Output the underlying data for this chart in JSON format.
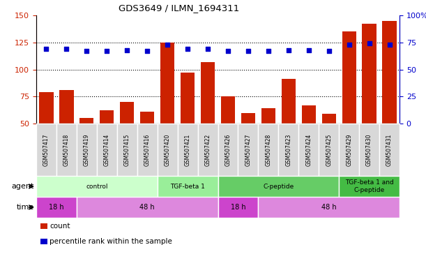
{
  "title": "GDS3649 / ILMN_1694311",
  "samples": [
    "GSM507417",
    "GSM507418",
    "GSM507419",
    "GSM507414",
    "GSM507415",
    "GSM507416",
    "GSM507420",
    "GSM507421",
    "GSM507422",
    "GSM507426",
    "GSM507427",
    "GSM507428",
    "GSM507423",
    "GSM507424",
    "GSM507425",
    "GSM507429",
    "GSM507430",
    "GSM507431"
  ],
  "counts": [
    79,
    81,
    55,
    62,
    70,
    61,
    125,
    97,
    107,
    75,
    60,
    64,
    91,
    67,
    59,
    135,
    142,
    145
  ],
  "percentiles": [
    69,
    69,
    67,
    67,
    68,
    67,
    73,
    69,
    69,
    67,
    67,
    67,
    68,
    68,
    67,
    73,
    74,
    73
  ],
  "bar_color": "#cc2200",
  "dot_color": "#0000cc",
  "ylim_left": [
    50,
    150
  ],
  "ylim_right": [
    0,
    100
  ],
  "yticks_left": [
    50,
    75,
    100,
    125,
    150
  ],
  "yticks_right": [
    0,
    25,
    50,
    75,
    100
  ],
  "agent_groups": [
    {
      "label": "control",
      "start": 0,
      "end": 6,
      "color": "#ccffcc"
    },
    {
      "label": "TGF-beta 1",
      "start": 6,
      "end": 9,
      "color": "#99ee99"
    },
    {
      "label": "C-peptide",
      "start": 9,
      "end": 15,
      "color": "#66cc66"
    },
    {
      "label": "TGF-beta 1 and\nC-peptide",
      "start": 15,
      "end": 18,
      "color": "#44bb44"
    }
  ],
  "time_groups": [
    {
      "label": "18 h",
      "start": 0,
      "end": 2,
      "color": "#cc44cc"
    },
    {
      "label": "48 h",
      "start": 2,
      "end": 9,
      "color": "#dd88dd"
    },
    {
      "label": "18 h",
      "start": 9,
      "end": 11,
      "color": "#cc44cc"
    },
    {
      "label": "48 h",
      "start": 11,
      "end": 18,
      "color": "#dd88dd"
    }
  ],
  "agent_label": "agent",
  "time_label": "time",
  "legend_count_label": "count",
  "legend_pct_label": "percentile rank within the sample",
  "tick_color_left": "#cc2200",
  "tick_color_right": "#0000cc",
  "xlabel_bg": "#dddddd"
}
